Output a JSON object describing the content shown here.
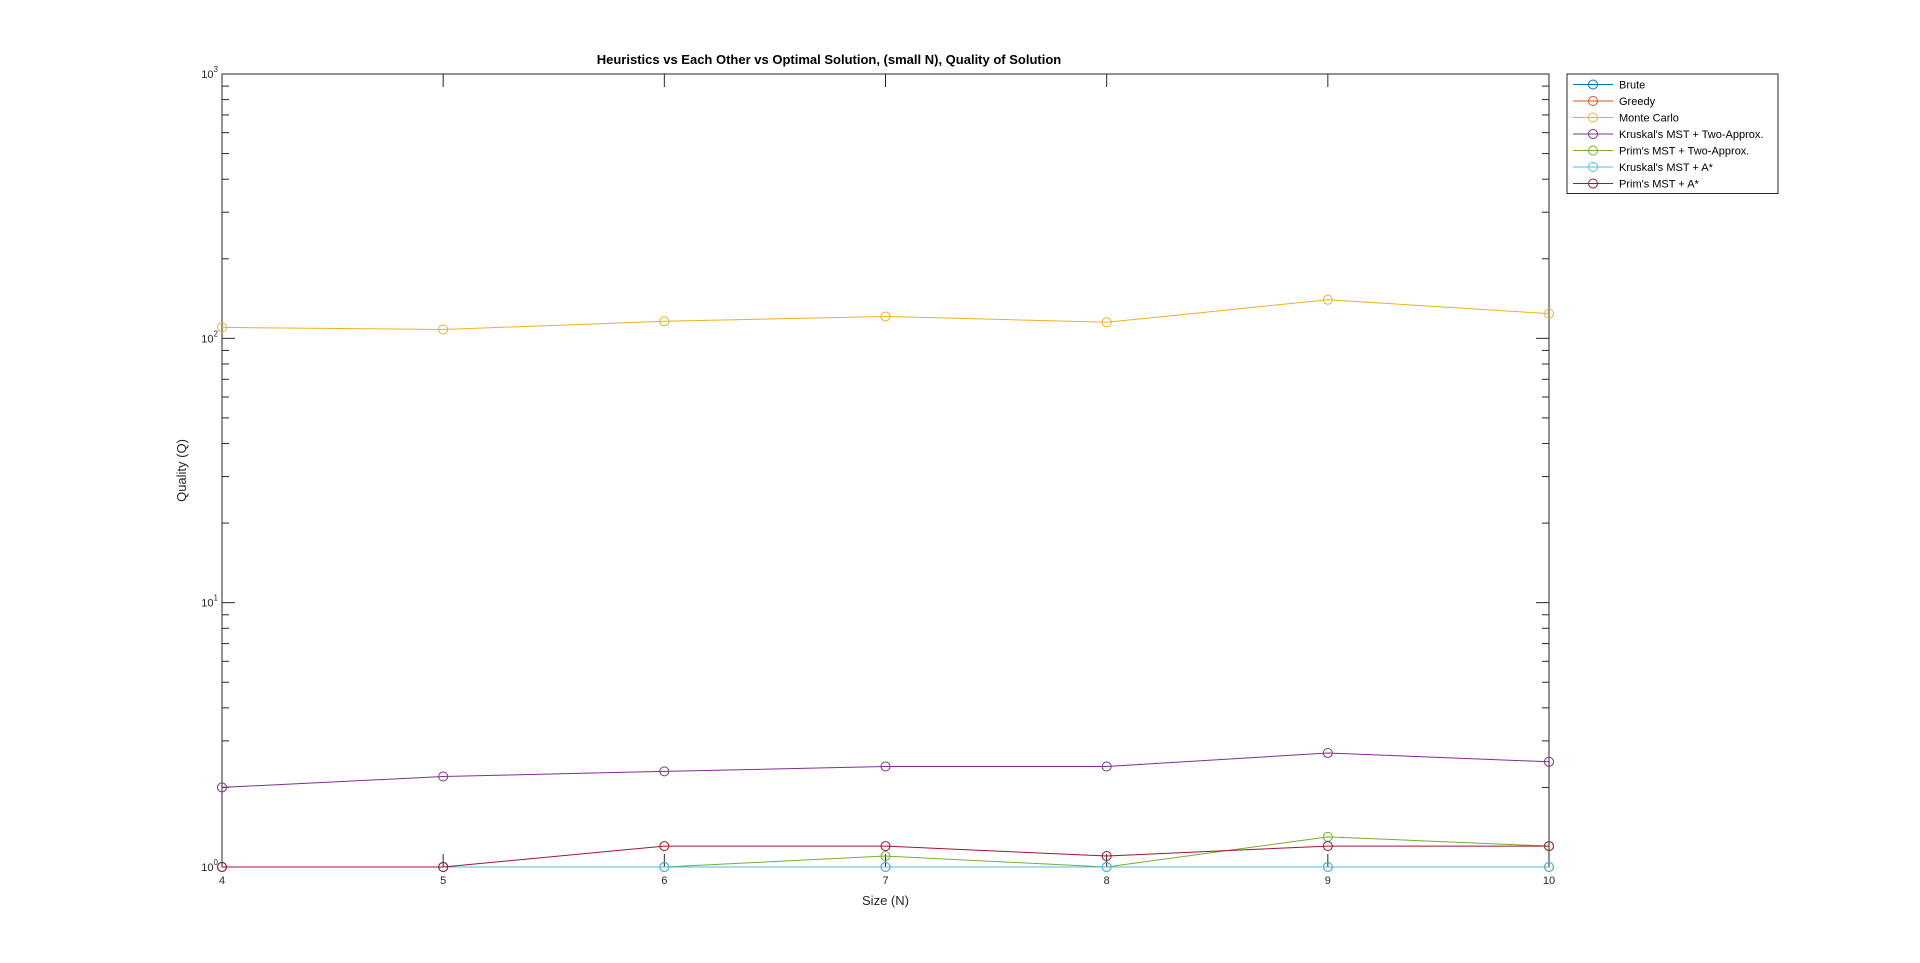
{
  "chart_data": {
    "type": "line",
    "title": "Heuristics vs Each Other vs Optimal Solution, (small N), Quality of Solution",
    "xlabel": "Size (N)",
    "ylabel": "Quality (Q)",
    "xlim": [
      4,
      10
    ],
    "ylim": [
      1,
      1000
    ],
    "yscale": "log",
    "x": [
      4,
      5,
      6,
      7,
      8,
      9,
      10
    ],
    "x_ticks": [
      "4",
      "5",
      "6",
      "7",
      "8",
      "9",
      "10"
    ],
    "y_ticks": [
      {
        "value": 1,
        "base": "10",
        "exp": "0"
      },
      {
        "value": 10,
        "base": "10",
        "exp": "1"
      },
      {
        "value": 100,
        "base": "10",
        "exp": "2"
      },
      {
        "value": 1000,
        "base": "10",
        "exp": "3"
      }
    ],
    "grid": false,
    "legend_position": "outside-top-right",
    "marker": "circle",
    "series": [
      {
        "name": "Brute",
        "color": "#0072BD",
        "values": [
          1,
          1,
          1,
          1,
          1,
          1,
          1
        ]
      },
      {
        "name": "Greedy",
        "color": "#D95319",
        "values": [
          1,
          1,
          1,
          1,
          1,
          1,
          1
        ]
      },
      {
        "name": "Monte Carlo",
        "color": "#EDB120",
        "values": [
          110,
          108,
          116,
          121,
          115,
          140,
          124
        ]
      },
      {
        "name": "Kruskal's MST + Two-Approx.",
        "color": "#7E2F8E",
        "values": [
          2.0,
          2.2,
          2.3,
          2.4,
          2.4,
          2.7,
          2.5
        ]
      },
      {
        "name": "Prim's MST + Two-Approx.",
        "color": "#77AC30",
        "values": [
          1.0,
          1.0,
          1.0,
          1.1,
          1.0,
          1.3,
          1.2
        ]
      },
      {
        "name": "Kruskal's MST + A*",
        "color": "#4DBEEE",
        "values": [
          1,
          1,
          1,
          1,
          1,
          1,
          1
        ]
      },
      {
        "name": "Prim's MST + A*",
        "color": "#A2142F",
        "values": [
          1.0,
          1.0,
          1.2,
          1.2,
          1.1,
          1.2,
          1.2
        ]
      }
    ]
  }
}
